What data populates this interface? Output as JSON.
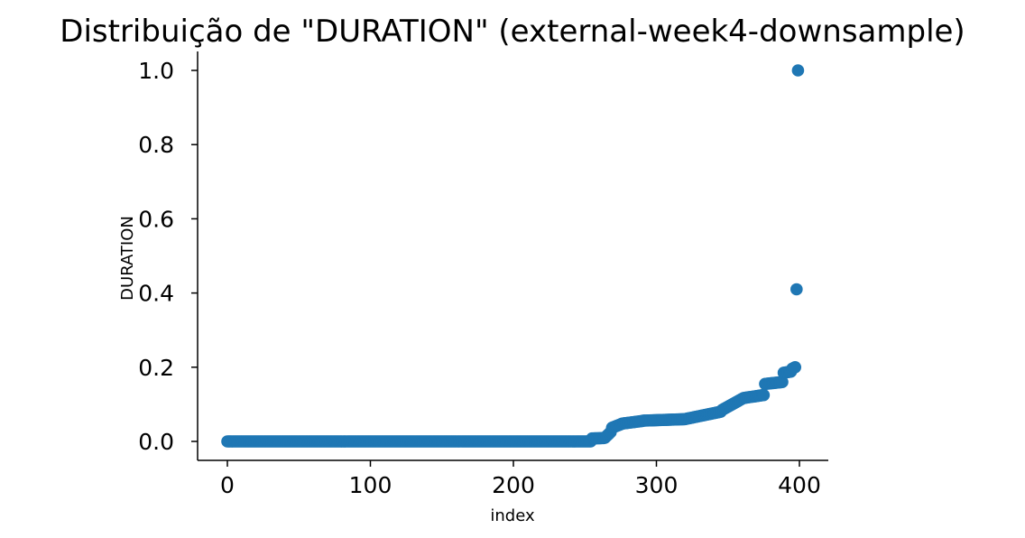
{
  "chart_data": {
    "type": "scatter",
    "title": "Distribuição de \"DURATION\" (external-week4-downsample)",
    "xlabel": "index",
    "ylabel": "DURATION",
    "xlim": [
      -20,
      419
    ],
    "ylim": [
      -0.05,
      1.05
    ],
    "xticks": [
      0,
      100,
      200,
      300,
      400
    ],
    "xtick_labels": [
      "0",
      "100",
      "200",
      "300",
      "400"
    ],
    "yticks": [
      0.0,
      0.2,
      0.4,
      0.6,
      0.8,
      1.0
    ],
    "ytick_labels": [
      "0.0",
      "0.2",
      "0.4",
      "0.6",
      "0.8",
      "1.0"
    ],
    "grid": false,
    "color": "#1f77b4",
    "series_segments": [
      {
        "x_start": 0,
        "x_end": 254,
        "y_start": 0.0,
        "y_end": 0.0
      },
      {
        "x_start": 255,
        "x_end": 263,
        "y_start": 0.008,
        "y_end": 0.009
      },
      {
        "x_start": 264,
        "x_end": 268,
        "y_start": 0.01,
        "y_end": 0.025
      },
      {
        "x_start": 269,
        "x_end": 275,
        "y_start": 0.037,
        "y_end": 0.046
      },
      {
        "x_start": 276,
        "x_end": 290,
        "y_start": 0.048,
        "y_end": 0.055
      },
      {
        "x_start": 291,
        "x_end": 320,
        "y_start": 0.056,
        "y_end": 0.06
      },
      {
        "x_start": 321,
        "x_end": 345,
        "y_start": 0.061,
        "y_end": 0.08
      },
      {
        "x_start": 346,
        "x_end": 360,
        "y_start": 0.085,
        "y_end": 0.115
      },
      {
        "x_start": 361,
        "x_end": 375,
        "y_start": 0.117,
        "y_end": 0.125
      },
      {
        "x_start": 376,
        "x_end": 388,
        "y_start": 0.155,
        "y_end": 0.16
      },
      {
        "x_start": 389,
        "x_end": 394,
        "y_start": 0.185,
        "y_end": 0.188
      },
      {
        "x_start": 395,
        "x_end": 397,
        "y_start": 0.196,
        "y_end": 0.2
      }
    ],
    "points": [
      {
        "x": 398,
        "y": 0.41
      },
      {
        "x": 399,
        "y": 1.0
      }
    ]
  }
}
